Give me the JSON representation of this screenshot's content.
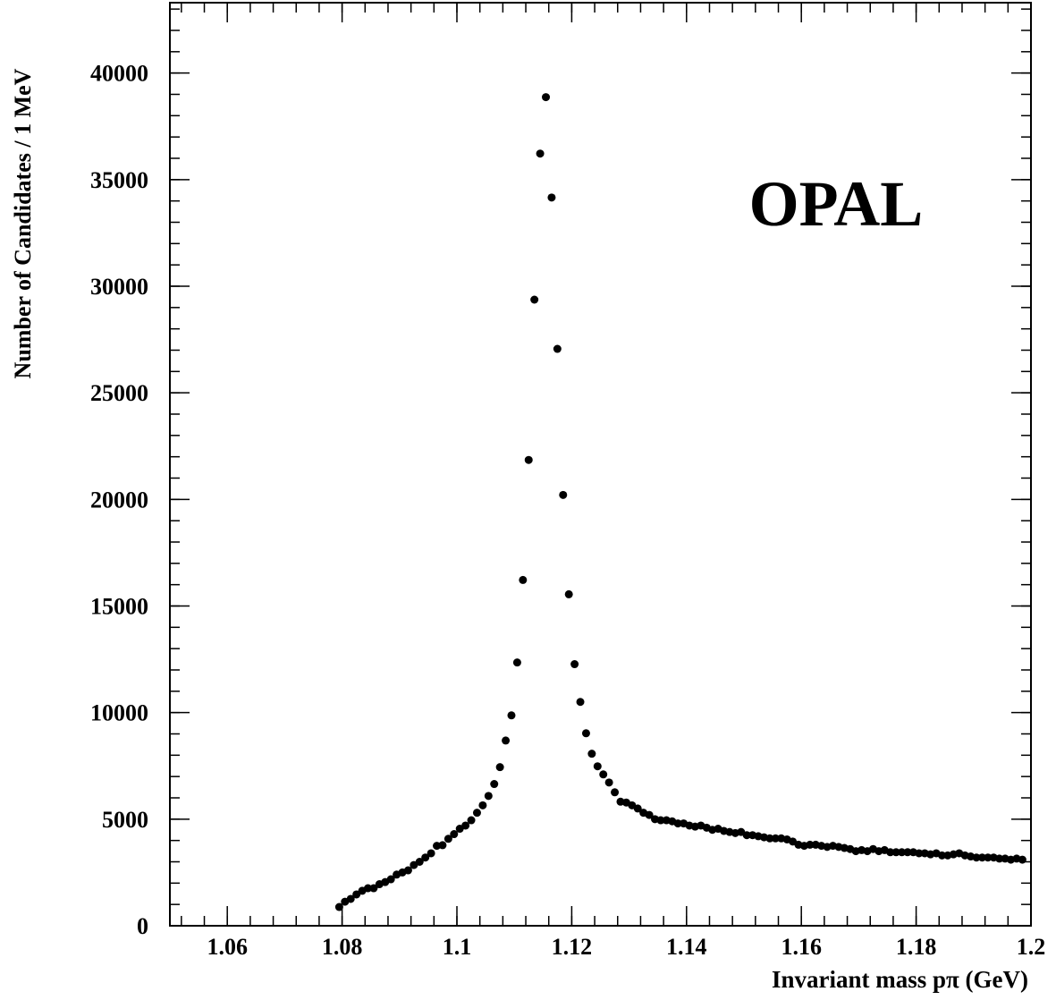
{
  "chart_data": {
    "type": "scatter",
    "xlabel": "Invariant mass pπ (GeV)",
    "ylabel": "Number of Candidates / 1 MeV",
    "annotation": "OPAL",
    "color": "#000000",
    "xlim": [
      1.05,
      1.2
    ],
    "ylim": [
      0,
      43300
    ],
    "xticks": [
      1.06,
      1.08,
      1.1,
      1.12,
      1.14,
      1.16,
      1.18,
      1.2
    ],
    "yticks": [
      0,
      5000,
      10000,
      15000,
      20000,
      25000,
      30000,
      35000,
      40000
    ],
    "x": [
      1.0795,
      1.0805,
      1.0815,
      1.0825,
      1.0835,
      1.0845,
      1.0855,
      1.0865,
      1.0875,
      1.0885,
      1.0895,
      1.0905,
      1.0915,
      1.0925,
      1.0935,
      1.0945,
      1.0955,
      1.0965,
      1.0975,
      1.0985,
      1.0995,
      1.1005,
      1.1015,
      1.1025,
      1.1035,
      1.1045,
      1.1055,
      1.1065,
      1.1075,
      1.1085,
      1.1095,
      1.1105,
      1.1115,
      1.1125,
      1.1135,
      1.1145,
      1.1155,
      1.1165,
      1.1175,
      1.1185,
      1.1195,
      1.1205,
      1.1215,
      1.1225,
      1.1235,
      1.1245,
      1.1255,
      1.1265,
      1.1275,
      1.1285,
      1.1295,
      1.1305,
      1.1315,
      1.1325,
      1.1335,
      1.1345,
      1.1355,
      1.1365,
      1.1375,
      1.1385,
      1.1395,
      1.1405,
      1.1415,
      1.1425,
      1.1435,
      1.1445,
      1.1455,
      1.1465,
      1.1475,
      1.1485,
      1.1495,
      1.1505,
      1.1515,
      1.1525,
      1.1535,
      1.1545,
      1.1555,
      1.1565,
      1.1575,
      1.1585,
      1.1595,
      1.1605,
      1.1615,
      1.1625,
      1.1635,
      1.1645,
      1.1655,
      1.1665,
      1.1675,
      1.1685,
      1.1695,
      1.1705,
      1.1715,
      1.1725,
      1.1735,
      1.1745,
      1.1755,
      1.1765,
      1.1775,
      1.1785,
      1.1795,
      1.1805,
      1.1815,
      1.1825,
      1.1835,
      1.1845,
      1.1855,
      1.1865,
      1.1875,
      1.1885,
      1.1895,
      1.1905,
      1.1915,
      1.1925,
      1.1935,
      1.1945,
      1.1955,
      1.1965,
      1.1975,
      1.1985
    ],
    "values": [
      880,
      1130,
      1260,
      1470,
      1640,
      1760,
      1760,
      1950,
      2050,
      2180,
      2400,
      2500,
      2600,
      2850,
      3000,
      3200,
      3400,
      3750,
      3780,
      4080,
      4300,
      4550,
      4700,
      4950,
      5300,
      5650,
      6090,
      6650,
      7440,
      8690,
      9870,
      12350,
      16220,
      21850,
      29370,
      36220,
      38870,
      34160,
      27060,
      20210,
      15550,
      12270,
      10500,
      9030,
      8070,
      7480,
      7100,
      6720,
      6260,
      5820,
      5780,
      5650,
      5500,
      5300,
      5200,
      5000,
      4950,
      4950,
      4900,
      4800,
      4800,
      4700,
      4650,
      4700,
      4600,
      4500,
      4550,
      4450,
      4400,
      4350,
      4400,
      4250,
      4250,
      4200,
      4150,
      4100,
      4100,
      4100,
      4050,
      3950,
      3800,
      3750,
      3800,
      3800,
      3750,
      3700,
      3750,
      3700,
      3650,
      3600,
      3500,
      3550,
      3500,
      3600,
      3500,
      3550,
      3450,
      3450,
      3450,
      3450,
      3450,
      3400,
      3400,
      3350,
      3400,
      3300,
      3300,
      3350,
      3400,
      3300,
      3250,
      3200,
      3200,
      3200,
      3200,
      3150,
      3150,
      3100,
      3150,
      3100
    ]
  }
}
